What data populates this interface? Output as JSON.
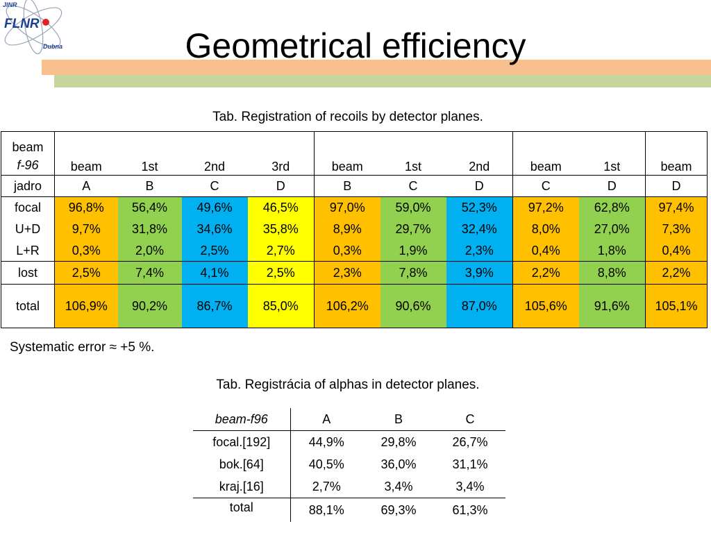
{
  "logo": {
    "top_text": "JINR",
    "main_text": "FLNR",
    "bottom_text": "Dubna",
    "accent_color": "#1d3f93",
    "dot_color": "#e3202a"
  },
  "slide": {
    "title": "Geometrical efficiency",
    "bar_colors": {
      "orange": "#f8c08c",
      "green": "#c6d59c"
    }
  },
  "table1": {
    "caption": "Tab. Registration of recoils by detector planes.",
    "corner_line1": "beam",
    "corner_line2": "f-96",
    "jadro_label": "jadro",
    "groups": [
      {
        "planes": [
          "beam",
          "1st",
          "2nd",
          "3rd"
        ],
        "jadro": [
          "A",
          "B",
          "C",
          "D"
        ]
      },
      {
        "planes": [
          "beam",
          "1st",
          "2nd"
        ],
        "jadro": [
          "B",
          "C",
          "D"
        ]
      },
      {
        "planes": [
          "beam",
          "1st"
        ],
        "jadro": [
          "C",
          "D"
        ]
      },
      {
        "planes": [
          "beam"
        ],
        "jadro": [
          "D"
        ]
      }
    ],
    "rows": [
      {
        "label": "focal",
        "values": [
          "96,8%",
          "56,4%",
          "49,6%",
          "46,5%",
          "97,0%",
          "59,0%",
          "52,3%",
          "97,2%",
          "62,8%",
          "97,4%"
        ]
      },
      {
        "label": "U+D",
        "values": [
          "9,7%",
          "31,8%",
          "34,6%",
          "35,8%",
          "8,9%",
          "29,7%",
          "32,4%",
          "8,0%",
          "27,0%",
          "7,3%"
        ]
      },
      {
        "label": "L+R",
        "values": [
          "0,3%",
          "2,0%",
          "2,5%",
          "2,7%",
          "0,3%",
          "1,9%",
          "2,3%",
          "0,4%",
          "1,8%",
          "0,4%"
        ]
      },
      {
        "label": "lost",
        "values": [
          "2,5%",
          "7,4%",
          "4,1%",
          "2,5%",
          "2,3%",
          "7,8%",
          "3,9%",
          "2,2%",
          "8,8%",
          "2,2%"
        ]
      },
      {
        "label": "total",
        "values": [
          "106,9%",
          "90,2%",
          "86,7%",
          "85,0%",
          "106,2%",
          "90,6%",
          "87,0%",
          "105,6%",
          "91,6%",
          "105,1%"
        ]
      }
    ],
    "column_colors": [
      "#ffc000",
      "#92d050",
      "#00b0f0",
      "#ffff00",
      "#ffc000",
      "#92d050",
      "#00b0f0",
      "#ffc000",
      "#92d050",
      "#ffc000"
    ]
  },
  "systematic_error": "Systematic error ≈ +5 %.",
  "table2": {
    "caption": "Tab. Registrácia of alphas in detector planes.",
    "header": [
      "beam-f96",
      "A",
      "B",
      "C"
    ],
    "rows": [
      [
        "focal.[192]",
        "44,9%",
        "29,8%",
        "26,7%"
      ],
      [
        "bok.[64]",
        "40,5%",
        "36,0%",
        "31,1%"
      ],
      [
        "kraj.[16]",
        "2,7%",
        "3,4%",
        "3,4%"
      ]
    ],
    "total": [
      "total",
      "88,1%",
      "69,3%",
      "61,3%"
    ]
  }
}
